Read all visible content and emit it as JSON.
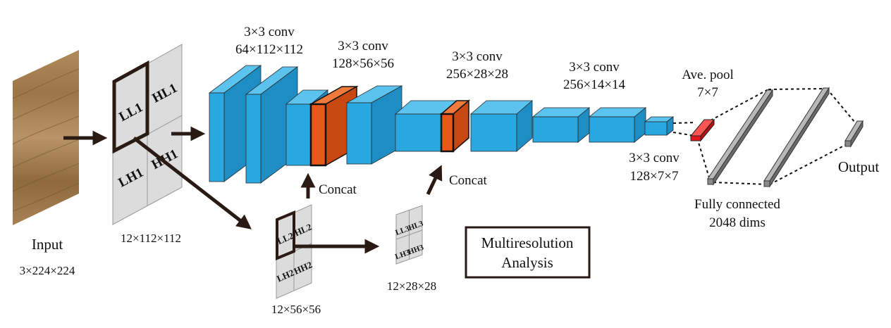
{
  "input": {
    "label": "Input",
    "dims": "3×224×224"
  },
  "wavelet1": {
    "dims": "12×112×112",
    "q": [
      "LL1",
      "HL1",
      "LH1",
      "HH1"
    ]
  },
  "wavelet2": {
    "dims": "12×56×56",
    "q": [
      "LL2",
      "HL2",
      "LH2",
      "HH2"
    ]
  },
  "wavelet3": {
    "dims": "12×28×28",
    "q": [
      "LL3",
      "HL3",
      "LH3",
      "HH3"
    ]
  },
  "conv_labels": [
    {
      "op": "3×3 conv",
      "dims": "64×112×112"
    },
    {
      "op": "3×3 conv",
      "dims": "128×56×56"
    },
    {
      "op": "3×3 conv",
      "dims": "256×28×28"
    },
    {
      "op": "3×3 conv",
      "dims": "256×14×14"
    },
    {
      "op": "3×3 conv",
      "dims": "128×7×7"
    }
  ],
  "concat_label": "Concat",
  "avepool": {
    "label": "Ave. pool",
    "size": "7×7"
  },
  "fc": {
    "label": "Fully connected",
    "dims": "2048 dims"
  },
  "output_label": "Output",
  "mra_box": {
    "line1": "Multiresolution",
    "line2": "Analysis"
  },
  "colors": {
    "conv": "#29a7e1",
    "concat": "#e8581b",
    "pool": "#e3161b",
    "fc": "#8a8a8a",
    "arrow": "#2a1a14"
  }
}
